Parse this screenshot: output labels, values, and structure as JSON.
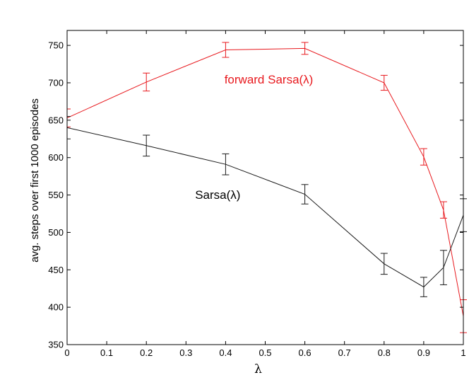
{
  "chart_data": {
    "type": "line",
    "xlabel": "λ",
    "ylabel": "avg. steps over first 1000 episodes",
    "xlim": [
      0,
      1
    ],
    "ylim": [
      350,
      770
    ],
    "xticks": [
      0,
      0.1,
      0.2,
      0.3,
      0.4,
      0.5,
      0.6,
      0.7,
      0.8,
      0.9,
      1
    ],
    "xtick_labels": [
      "0",
      "0.1",
      "0.2",
      "0.3",
      "0.4",
      "0.5",
      "0.6",
      "0.7",
      "0.8",
      "0.9",
      "1"
    ],
    "yticks": [
      350,
      400,
      450,
      500,
      550,
      600,
      650,
      700,
      750
    ],
    "ytick_labels": [
      "350",
      "400",
      "450",
      "500",
      "550",
      "600",
      "650",
      "700",
      "750"
    ],
    "grid": false,
    "series": [
      {
        "name": "forward Sarsa(λ)",
        "color": "#e8191e",
        "x": [
          0,
          0.2,
          0.4,
          0.6,
          0.8,
          0.9,
          0.95,
          1
        ],
        "y": [
          653,
          701,
          744,
          746,
          700,
          601,
          530,
          388
        ],
        "err": [
          12,
          12,
          10,
          8,
          10,
          11,
          11,
          22
        ]
      },
      {
        "name": "Sarsa(λ)",
        "color": "#1a1a1a",
        "x": [
          0,
          0.2,
          0.4,
          0.6,
          0.8,
          0.9,
          0.95,
          1
        ],
        "y": [
          640,
          616,
          591,
          551,
          458,
          427,
          453,
          523
        ],
        "err": [
          15,
          14,
          14,
          13,
          14,
          13,
          23,
          22
        ]
      }
    ],
    "annotations": [
      {
        "text": "forward Sarsa(λ)",
        "x": 0.397,
        "y": 699,
        "color": "#e8191e"
      },
      {
        "text": "Sarsa(λ)",
        "x": 0.323,
        "y": 545,
        "color": "#000000"
      }
    ]
  }
}
